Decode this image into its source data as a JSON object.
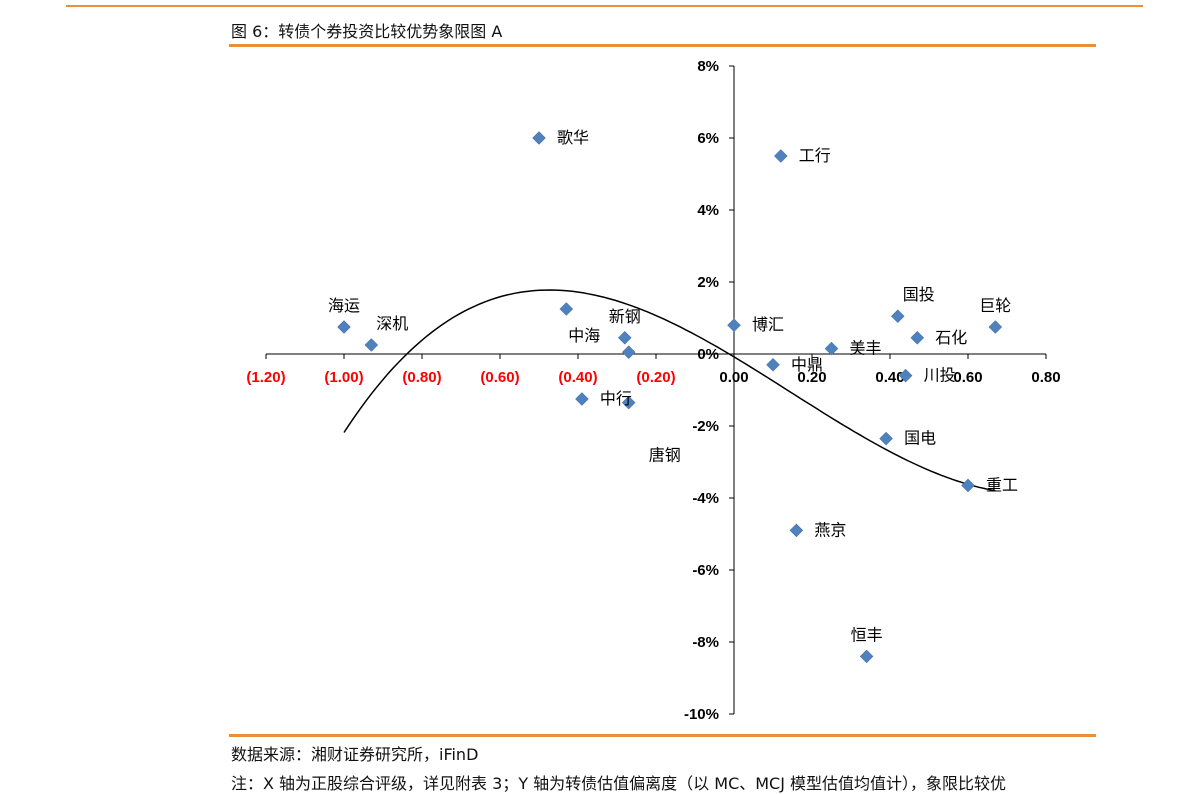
{
  "figure": {
    "title": "图 6：转债个券投资比较优势象限图 A",
    "source": "数据来源：湘财证券研究所，iFinD",
    "note": "注：X 轴为正股综合评级，详见附表 3；Y 轴为转债估值偏离度（以 MC、MCJ 模型估值均值计），象限比较优"
  },
  "colors": {
    "accent": "#e8913a",
    "marker": "#4f81bd",
    "negative_tick": "#ff0000",
    "axis": "#000000"
  },
  "chart_data": {
    "type": "scatter",
    "title": "",
    "xlabel": "",
    "ylabel": "",
    "xlim": [
      -1.2,
      0.8
    ],
    "ylim": [
      -10,
      8
    ],
    "grid": false,
    "legend": "none",
    "x_ticks": [
      {
        "value": -1.2,
        "label": "(1.20)"
      },
      {
        "value": -1.0,
        "label": "(1.00)"
      },
      {
        "value": -0.8,
        "label": "(0.80)"
      },
      {
        "value": -0.6,
        "label": "(0.60)"
      },
      {
        "value": -0.4,
        "label": "(0.40)"
      },
      {
        "value": -0.2,
        "label": "(0.20)"
      },
      {
        "value": 0.0,
        "label": "0.00"
      },
      {
        "value": 0.2,
        "label": "0.20"
      },
      {
        "value": 0.4,
        "label": "0.40"
      },
      {
        "value": 0.6,
        "label": "0.60"
      },
      {
        "value": 0.8,
        "label": "0.80"
      }
    ],
    "y_ticks": [
      {
        "value": 8,
        "label": "8%"
      },
      {
        "value": 6,
        "label": "6%"
      },
      {
        "value": 4,
        "label": "4%"
      },
      {
        "value": 2,
        "label": "2%"
      },
      {
        "value": 0,
        "label": "0%"
      },
      {
        "value": -2,
        "label": "-2%"
      },
      {
        "value": -4,
        "label": "-4%"
      },
      {
        "value": -6,
        "label": "-6%"
      },
      {
        "value": -8,
        "label": "-8%"
      },
      {
        "value": -10,
        "label": "-10%"
      }
    ],
    "points": [
      {
        "label": "歌华",
        "x": -0.5,
        "y": 6.0,
        "pos": "right"
      },
      {
        "label": "工行",
        "x": 0.12,
        "y": 5.5,
        "pos": "right"
      },
      {
        "label": "海运",
        "x": -1.0,
        "y": 0.75,
        "pos": "above"
      },
      {
        "label": "深机",
        "x": -0.93,
        "y": 0.25,
        "pos": "aboveright"
      },
      {
        "label": "中海",
        "x": -0.43,
        "y": 1.25,
        "pos": "lowright"
      },
      {
        "label": "新钢",
        "x": -0.28,
        "y": 0.45,
        "pos": "above"
      },
      {
        "label": "",
        "x": -0.27,
        "y": 0.05,
        "pos": "none"
      },
      {
        "label": "中行",
        "x": -0.39,
        "y": -1.25,
        "pos": "right"
      },
      {
        "label": "唐钢",
        "x": -0.27,
        "y": -1.35,
        "pos": "belowright"
      },
      {
        "label": "博汇",
        "x": 0.0,
        "y": 0.8,
        "pos": "right"
      },
      {
        "label": "中鼎",
        "x": 0.1,
        "y": -0.3,
        "pos": "right"
      },
      {
        "label": "美丰",
        "x": 0.25,
        "y": 0.15,
        "pos": "right"
      },
      {
        "label": "国投",
        "x": 0.42,
        "y": 1.05,
        "pos": "aboveright"
      },
      {
        "label": "石化",
        "x": 0.47,
        "y": 0.45,
        "pos": "right"
      },
      {
        "label": "巨轮",
        "x": 0.67,
        "y": 0.75,
        "pos": "above"
      },
      {
        "label": "川投",
        "x": 0.44,
        "y": -0.6,
        "pos": "right"
      },
      {
        "label": "国电",
        "x": 0.39,
        "y": -2.35,
        "pos": "right"
      },
      {
        "label": "重工",
        "x": 0.6,
        "y": -3.65,
        "pos": "right"
      },
      {
        "label": "燕京",
        "x": 0.16,
        "y": -4.9,
        "pos": "right"
      },
      {
        "label": "恒丰",
        "x": 0.34,
        "y": -8.4,
        "pos": "above"
      }
    ],
    "trend_curve": {
      "type": "cubic",
      "x_range": [
        -1.0,
        0.67
      ],
      "coefficients": [
        -0.08,
        -6.5,
        -2.6,
        6.0
      ]
    }
  }
}
